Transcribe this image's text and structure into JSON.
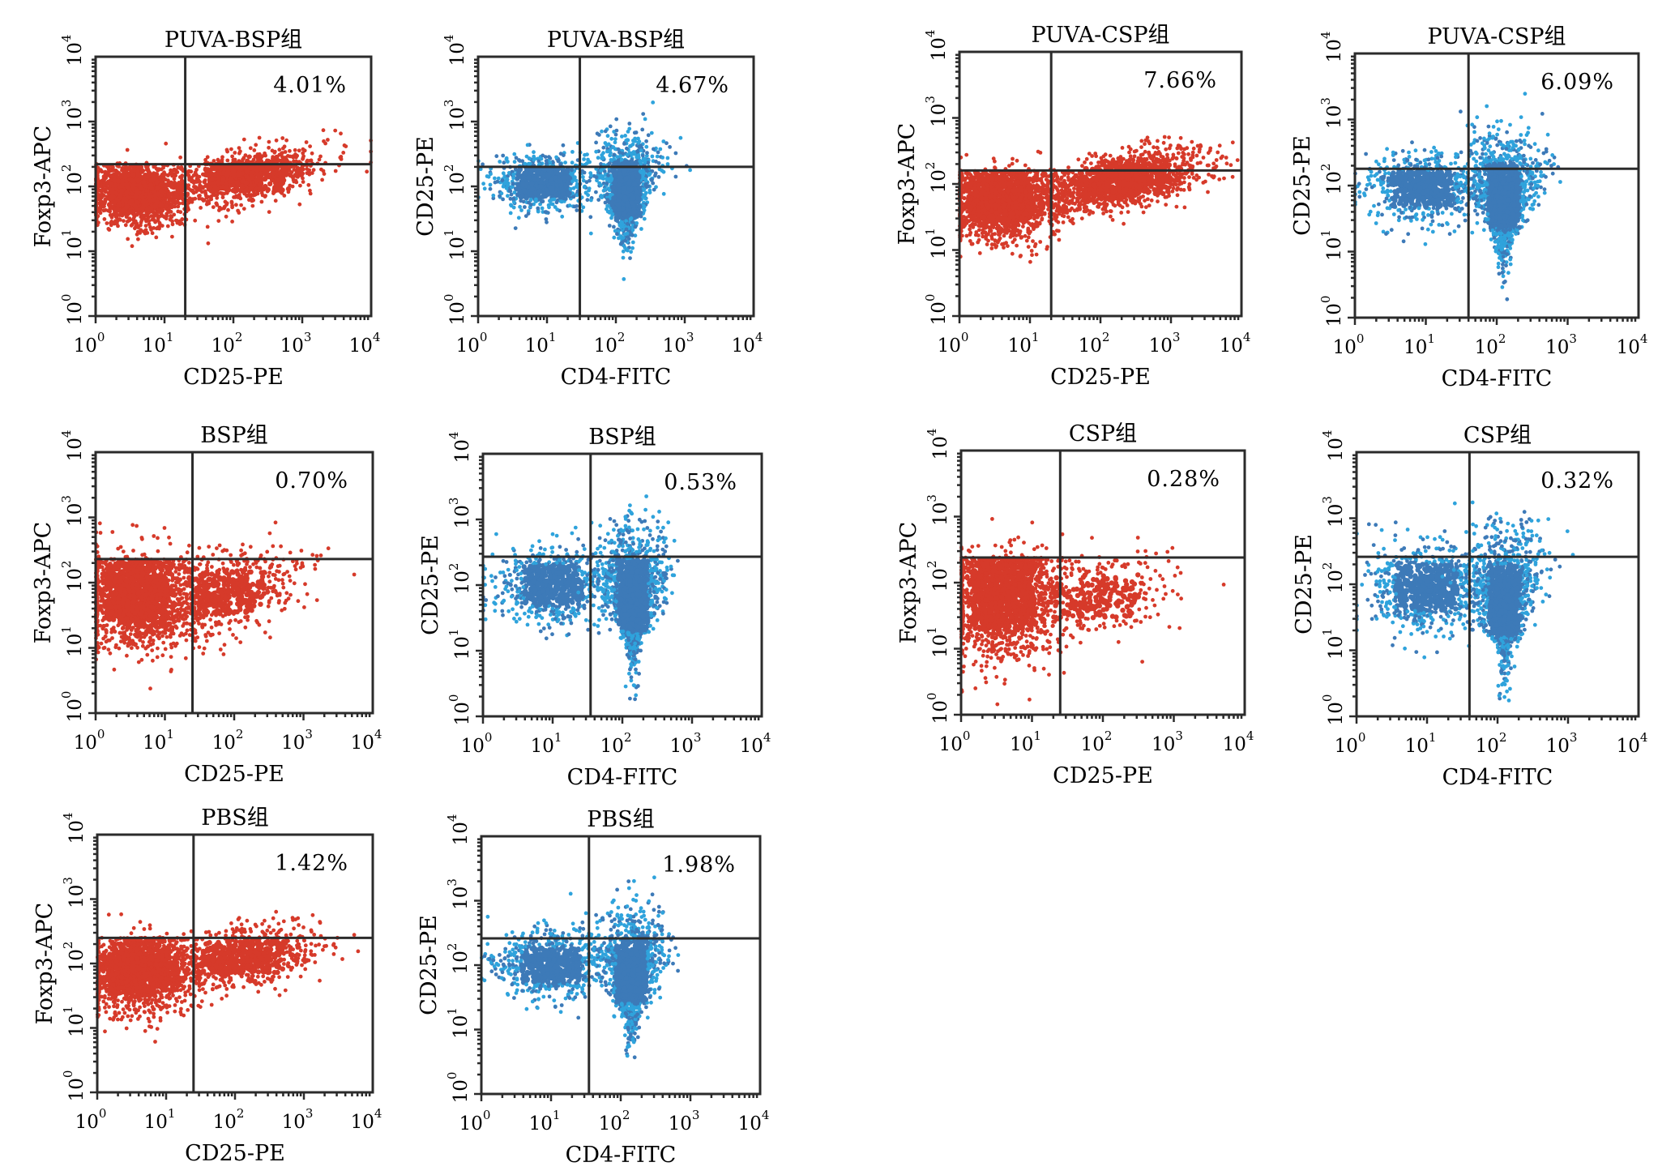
{
  "figure": {
    "marker_colors": {
      "foxp3_vs_cd25": "#d63a2a",
      "cd25_vs_cd4": "#3d7ab8",
      "cd25_vs_cd4_edge": "#2fa3dc"
    },
    "frame_color": "#2b2b2b"
  },
  "chart_data": [
    {
      "id": "puva-bsp-foxp3",
      "type": "scatter",
      "title": "PUVA-BSP组",
      "xlabel": "CD25-PE",
      "ylabel": "Foxp3-APC",
      "xscale": "log",
      "yscale": "log",
      "xlim": [
        1,
        10000
      ],
      "ylim": [
        1,
        10000
      ],
      "xticks": [
        "10^0",
        "10^1",
        "10^2",
        "10^3",
        "10^4"
      ],
      "yticks": [
        "10^0",
        "10^1",
        "10^2",
        "10^3",
        "10^4"
      ],
      "gate": {
        "x": 20,
        "y": 220
      },
      "quadrant_annotation": {
        "quadrant": "upper-right",
        "text": "4.01%"
      },
      "color": "#d63a2a",
      "populations": [
        {
          "x_log_center": 0.6,
          "y_log_center": 1.9,
          "x_log_sd": 0.35,
          "y_log_sd": 0.25,
          "n": 1400,
          "x_min_log": 0.0,
          "y_max_log": 2.34
        },
        {
          "x_log_center": 2.2,
          "y_log_center": 2.15,
          "x_log_sd": 0.55,
          "y_log_sd": 0.2,
          "n": 900,
          "slope": 0.2
        }
      ]
    },
    {
      "id": "puva-bsp-cd4",
      "type": "scatter",
      "title": "PUVA-BSP组",
      "xlabel": "CD4-FITC",
      "ylabel": "CD25-PE",
      "xscale": "log",
      "yscale": "log",
      "xlim": [
        1,
        10000
      ],
      "ylim": [
        1,
        10000
      ],
      "xticks": [
        "10^0",
        "10^1",
        "10^2",
        "10^3",
        "10^4"
      ],
      "yticks": [
        "10^0",
        "10^1",
        "10^2",
        "10^3",
        "10^4"
      ],
      "gate": {
        "x": 30,
        "y": 200
      },
      "quadrant_annotation": {
        "quadrant": "upper-right",
        "text": "4.67%"
      },
      "color": "#3d7ab8",
      "populations": [
        {
          "x_log_center": 0.95,
          "y_log_center": 2.05,
          "x_log_sd": 0.35,
          "y_log_sd": 0.22,
          "n": 700
        },
        {
          "x_log_center": 2.15,
          "y_log_center": 1.95,
          "x_log_sd": 0.18,
          "y_log_sd": 0.4,
          "n": 1100,
          "taper": true
        }
      ]
    },
    {
      "id": "puva-csp-foxp3",
      "type": "scatter",
      "title": "PUVA-CSP组",
      "xlabel": "CD25-PE",
      "ylabel": "Foxp3-APC",
      "xscale": "log",
      "yscale": "log",
      "xlim": [
        1,
        10000
      ],
      "ylim": [
        1,
        10000
      ],
      "xticks": [
        "10^0",
        "10^1",
        "10^2",
        "10^3",
        "10^4"
      ],
      "yticks": [
        "10^0",
        "10^1",
        "10^2",
        "10^3",
        "10^4"
      ],
      "gate": {
        "x": 20,
        "y": 160
      },
      "quadrant_annotation": {
        "quadrant": "upper-right",
        "text": "7.66%"
      },
      "color": "#d63a2a",
      "populations": [
        {
          "x_log_center": 0.6,
          "y_log_center": 1.75,
          "x_log_sd": 0.4,
          "y_log_sd": 0.3,
          "n": 1600,
          "x_min_log": 0.0,
          "y_max_log": 2.2
        },
        {
          "x_log_center": 2.3,
          "y_log_center": 2.05,
          "x_log_sd": 0.6,
          "y_log_sd": 0.2,
          "n": 1300,
          "slope": 0.22
        }
      ]
    },
    {
      "id": "puva-csp-cd4",
      "type": "scatter",
      "title": "PUVA-CSP组",
      "xlabel": "CD4-FITC",
      "ylabel": "CD25-PE",
      "xscale": "log",
      "yscale": "log",
      "xlim": [
        1,
        10000
      ],
      "ylim": [
        1,
        10000
      ],
      "xticks": [
        "10^0",
        "10^1",
        "10^2",
        "10^3",
        "10^4"
      ],
      "yticks": [
        "10^0",
        "10^1",
        "10^2",
        "10^3",
        "10^4"
      ],
      "gate": {
        "x": 40,
        "y": 180
      },
      "quadrant_annotation": {
        "quadrant": "upper-right",
        "text": "6.09%"
      },
      "color": "#3d7ab8",
      "populations": [
        {
          "x_log_center": 0.95,
          "y_log_center": 1.95,
          "x_log_sd": 0.4,
          "y_log_sd": 0.25,
          "n": 700
        },
        {
          "x_log_center": 2.1,
          "y_log_center": 1.85,
          "x_log_sd": 0.2,
          "y_log_sd": 0.45,
          "n": 1300,
          "taper": true
        }
      ]
    },
    {
      "id": "bsp-foxp3",
      "type": "scatter",
      "title": "BSP组",
      "xlabel": "CD25-PE",
      "ylabel": "Foxp3-APC",
      "xscale": "log",
      "yscale": "log",
      "xlim": [
        1,
        10000
      ],
      "ylim": [
        1,
        10000
      ],
      "xticks": [
        "10^0",
        "10^1",
        "10^2",
        "10^3",
        "10^4"
      ],
      "yticks": [
        "10^0",
        "10^1",
        "10^2",
        "10^3",
        "10^4"
      ],
      "gate": {
        "x": 25,
        "y": 230
      },
      "quadrant_annotation": {
        "quadrant": "upper-right",
        "text": "0.70%"
      },
      "color": "#d63a2a",
      "populations": [
        {
          "x_log_center": 0.6,
          "y_log_center": 1.8,
          "x_log_sd": 0.4,
          "y_log_sd": 0.4,
          "n": 1700,
          "x_min_log": 0.0,
          "y_max_log": 2.36
        },
        {
          "x_log_center": 1.9,
          "y_log_center": 1.85,
          "x_log_sd": 0.5,
          "y_log_sd": 0.3,
          "n": 600,
          "slope": 0.2
        }
      ]
    },
    {
      "id": "bsp-cd4",
      "type": "scatter",
      "title": "BSP组",
      "xlabel": "CD4-FITC",
      "ylabel": "CD25-PE",
      "xscale": "log",
      "yscale": "log",
      "xlim": [
        1,
        10000
      ],
      "ylim": [
        1,
        10000
      ],
      "xticks": [
        "10^0",
        "10^1",
        "10^2",
        "10^3",
        "10^4"
      ],
      "yticks": [
        "10^0",
        "10^1",
        "10^2",
        "10^3",
        "10^4"
      ],
      "gate": {
        "x": 35,
        "y": 270
      },
      "quadrant_annotation": {
        "quadrant": "upper-right",
        "text": "0.53%"
      },
      "color": "#3d7ab8",
      "populations": [
        {
          "x_log_center": 1.0,
          "y_log_center": 2.0,
          "x_log_sd": 0.38,
          "y_log_sd": 0.28,
          "n": 700
        },
        {
          "x_log_center": 2.15,
          "y_log_center": 1.85,
          "x_log_sd": 0.2,
          "y_log_sd": 0.5,
          "n": 1300,
          "taper": true
        }
      ]
    },
    {
      "id": "csp-foxp3",
      "type": "scatter",
      "title": "CSP组",
      "xlabel": "CD25-PE",
      "ylabel": "Foxp3-APC",
      "xscale": "log",
      "yscale": "log",
      "xlim": [
        1,
        10000
      ],
      "ylim": [
        1,
        10000
      ],
      "xticks": [
        "10^0",
        "10^1",
        "10^2",
        "10^3",
        "10^4"
      ],
      "yticks": [
        "10^0",
        "10^1",
        "10^2",
        "10^3",
        "10^4"
      ],
      "gate": {
        "x": 25,
        "y": 240
      },
      "quadrant_annotation": {
        "quadrant": "upper-right",
        "text": "0.28%"
      },
      "color": "#d63a2a",
      "populations": [
        {
          "x_log_center": 0.6,
          "y_log_center": 1.8,
          "x_log_sd": 0.4,
          "y_log_sd": 0.45,
          "n": 1700,
          "x_min_log": 0.0,
          "y_max_log": 2.38
        },
        {
          "x_log_center": 1.9,
          "y_log_center": 1.8,
          "x_log_sd": 0.55,
          "y_log_sd": 0.3,
          "n": 350,
          "slope": 0.1
        }
      ]
    },
    {
      "id": "csp-cd4",
      "type": "scatter",
      "title": "CSP组",
      "xlabel": "CD4-FITC",
      "ylabel": "CD25-PE",
      "xscale": "log",
      "yscale": "log",
      "xlim": [
        1,
        10000
      ],
      "ylim": [
        1,
        10000
      ],
      "xticks": [
        "10^0",
        "10^1",
        "10^2",
        "10^3",
        "10^4"
      ],
      "yticks": [
        "10^0",
        "10^1",
        "10^2",
        "10^3",
        "10^4"
      ],
      "gate": {
        "x": 40,
        "y": 260
      },
      "quadrant_annotation": {
        "quadrant": "upper-right",
        "text": "0.32%"
      },
      "color": "#3d7ab8",
      "populations": [
        {
          "x_log_center": 1.0,
          "y_log_center": 1.95,
          "x_log_sd": 0.4,
          "y_log_sd": 0.32,
          "n": 800
        },
        {
          "x_log_center": 2.1,
          "y_log_center": 1.75,
          "x_log_sd": 0.2,
          "y_log_sd": 0.5,
          "n": 1300,
          "taper": true
        }
      ]
    },
    {
      "id": "pbs-foxp3",
      "type": "scatter",
      "title": "PBS组",
      "xlabel": "CD25-PE",
      "ylabel": "Foxp3-APC",
      "xscale": "log",
      "yscale": "log",
      "xlim": [
        1,
        10000
      ],
      "ylim": [
        1,
        10000
      ],
      "xticks": [
        "10^0",
        "10^1",
        "10^2",
        "10^3",
        "10^4"
      ],
      "yticks": [
        "10^0",
        "10^1",
        "10^2",
        "10^3",
        "10^4"
      ],
      "gate": {
        "x": 25,
        "y": 250
      },
      "quadrant_annotation": {
        "quadrant": "upper-right",
        "text": "1.42%"
      },
      "color": "#d63a2a",
      "populations": [
        {
          "x_log_center": 0.6,
          "y_log_center": 1.9,
          "x_log_sd": 0.38,
          "y_log_sd": 0.3,
          "n": 1600,
          "x_min_log": 0.0,
          "y_max_log": 2.4
        },
        {
          "x_log_center": 2.1,
          "y_log_center": 2.1,
          "x_log_sd": 0.55,
          "y_log_sd": 0.22,
          "n": 800,
          "slope": 0.15
        }
      ]
    },
    {
      "id": "pbs-cd4",
      "type": "scatter",
      "title": "PBS组",
      "xlabel": "CD4-FITC",
      "ylabel": "CD25-PE",
      "xscale": "log",
      "yscale": "log",
      "xlim": [
        1,
        10000
      ],
      "ylim": [
        1,
        10000
      ],
      "xticks": [
        "10^0",
        "10^1",
        "10^2",
        "10^3",
        "10^4"
      ],
      "yticks": [
        "10^0",
        "10^1",
        "10^2",
        "10^3",
        "10^4"
      ],
      "gate": {
        "x": 35,
        "y": 260
      },
      "quadrant_annotation": {
        "quadrant": "upper-right",
        "text": "1.98%"
      },
      "color": "#3d7ab8",
      "populations": [
        {
          "x_log_center": 1.0,
          "y_log_center": 2.0,
          "x_log_sd": 0.38,
          "y_log_sd": 0.25,
          "n": 700
        },
        {
          "x_log_center": 2.15,
          "y_log_center": 1.9,
          "x_log_sd": 0.2,
          "y_log_sd": 0.45,
          "n": 1200,
          "taper": true
        }
      ]
    }
  ]
}
